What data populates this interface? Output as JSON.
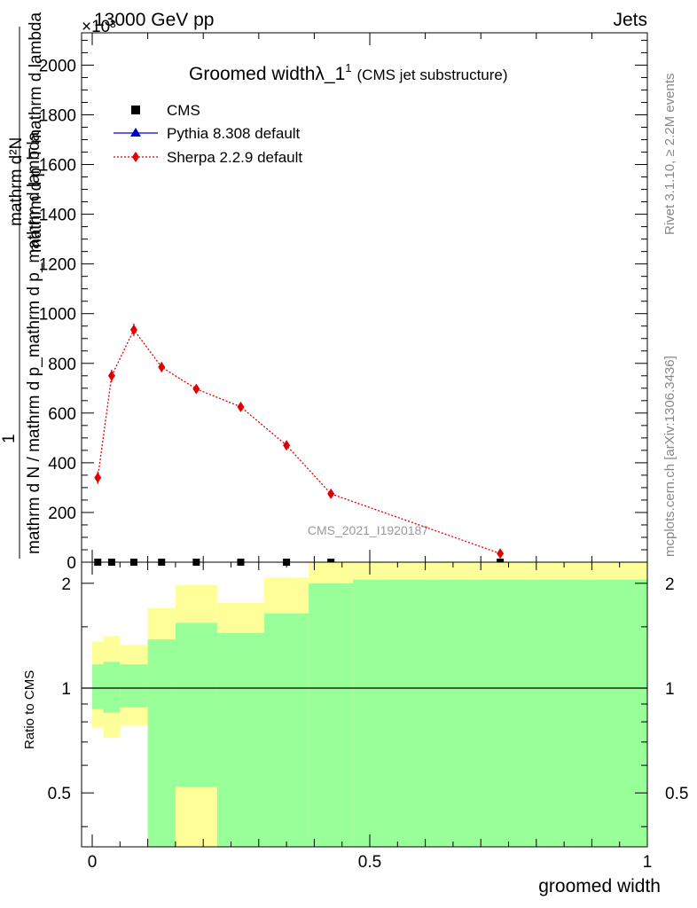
{
  "header": {
    "left": "13000 GeV pp",
    "right": "Jets",
    "exponent": "×10³"
  },
  "side_labels": {
    "right_top": "Rivet 3.1.10, ≥ 2.2M events",
    "right_bottom": "mcplots.cern.ch [arXiv:1306.3436]"
  },
  "chart_data": [
    {
      "type": "scatter",
      "title": "Groomed widthλ_1",
      "title_sup": "1",
      "subtitle": "(CMS jet substructure)",
      "ylabel_numerator": "1",
      "ylabel_denominator": "mathrm d N / mathrm d p_mathrm d p_mathrm d lambda",
      "ylabel_top": "mathrm d²N",
      "ylabel_top2": "mathrm d p_T mathrm d lambda",
      "watermark": "CMS_2021_I1920187",
      "xlim": [
        0,
        1
      ],
      "ylim": [
        0,
        2130
      ],
      "y_ticks": [
        "0",
        "200",
        "400",
        "600",
        "800",
        "1000",
        "1200",
        "1400",
        "1600",
        "1800",
        "2000"
      ],
      "y_tick_values": [
        0,
        200,
        400,
        600,
        800,
        1000,
        1200,
        1400,
        1600,
        1800,
        2000
      ],
      "legend_position": "top-left",
      "series": [
        {
          "name": "CMS",
          "color": "#000000",
          "marker": "square",
          "x": [
            0.01,
            0.035,
            0.075,
            0.125,
            0.1875,
            0.2675,
            0.35,
            0.43,
            0.735
          ],
          "y": [
            0,
            0,
            0,
            0,
            0,
            0,
            0,
            0,
            0
          ]
        },
        {
          "name": "Pythia 8.308 default",
          "color": "#0000cc",
          "marker": "triangle",
          "x": [],
          "y": []
        },
        {
          "name": "Sherpa 2.2.9 default",
          "color": "#e00000",
          "marker": "diamond",
          "x": [
            0.01,
            0.035,
            0.075,
            0.125,
            0.1875,
            0.2675,
            0.35,
            0.43,
            0.735
          ],
          "y": [
            340,
            750,
            935,
            785,
            697,
            625,
            470,
            275,
            35
          ],
          "yerr": [
            25,
            25,
            25,
            20,
            15,
            12,
            10,
            8,
            4
          ]
        }
      ]
    },
    {
      "type": "area",
      "ylabel": "Ratio to CMS",
      "xlabel": "groomed width",
      "xlim": [
        0,
        1
      ],
      "ylim": [
        0.35,
        2.3
      ],
      "y_ticks": [
        "0.5",
        "1",
        "2"
      ],
      "y_tick_values": [
        0.5,
        1,
        2
      ],
      "x_ticks": [
        "0",
        "0.5",
        "1"
      ],
      "x_tick_values": [
        0,
        0.5,
        1
      ],
      "reference_line": 1,
      "bins": [
        0,
        0.02,
        0.05,
        0.1,
        0.15,
        0.225,
        0.31,
        0.39,
        0.47,
        1.0
      ],
      "green_band": {
        "color": "#99ff99",
        "low": [
          0.87,
          0.85,
          0.88,
          0.35,
          0.52,
          0.35,
          0.35,
          0.35,
          0.35
        ],
        "high": [
          1.17,
          1.19,
          1.17,
          1.38,
          1.54,
          1.44,
          1.64,
          2.0,
          2.05
        ]
      },
      "yellow_band": {
        "color": "#ffff99",
        "low": [
          0.77,
          0.72,
          0.78,
          0.35,
          0.35,
          0.35,
          0.35,
          0.35,
          0.35
        ],
        "high": [
          1.36,
          1.41,
          1.33,
          1.7,
          1.98,
          1.76,
          2.08,
          2.3,
          2.3
        ]
      }
    }
  ]
}
